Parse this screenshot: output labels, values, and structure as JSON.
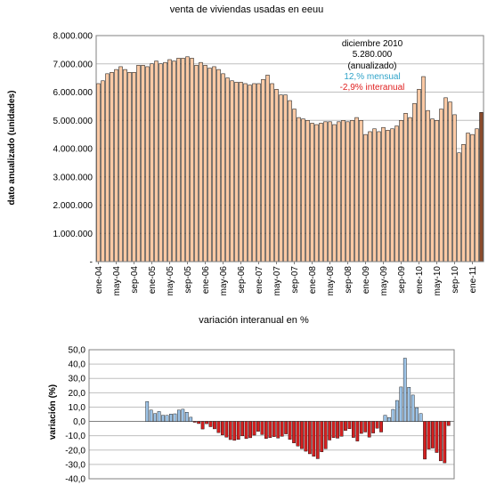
{
  "chart_data": [
    {
      "type": "bar",
      "title": "venta de viviendas usadas en eeuu",
      "ylabel": "dato anualizado (unidades)",
      "xlabel": "",
      "ylim": [
        0,
        8000000
      ],
      "y_tick_labels": [
        "-",
        "1.000.000",
        "2.000.000",
        "3.000.000",
        "4.000.000",
        "5.000.000",
        "6.000.000",
        "7.000.000",
        "8.000.000"
      ],
      "x_tick_labels": [
        "ene-04",
        "may-04",
        "sep-04",
        "ene-05",
        "may-05",
        "sep-05",
        "ene-06",
        "may-06",
        "sep-06",
        "ene-07",
        "may-07",
        "sep-07",
        "ene-08",
        "may-08",
        "sep-08",
        "ene-09",
        "may-09",
        "sep-09",
        "ene-10",
        "may-10",
        "sep-10",
        "ene-11"
      ],
      "grid": true,
      "colors": {
        "bar": "#fbc9a4",
        "last_bar": "#8b4a2b",
        "border": "#000000"
      },
      "annotation": {
        "line1": "diciembre 2010",
        "line2": "5.280.000",
        "line3": "(anualizado)",
        "line4": "12,% mensual",
        "line5": "-2,9% interanual",
        "line4_color": "#2fa3c9",
        "line5_color": "#e02020"
      },
      "values": [
        6300000,
        6400000,
        6650000,
        6700000,
        6800000,
        6900000,
        6800000,
        6700000,
        6700000,
        6950000,
        6950000,
        6900000,
        7000000,
        7100000,
        7000000,
        7050000,
        7150000,
        7100000,
        7200000,
        7200000,
        7250000,
        7200000,
        6950000,
        7050000,
        6950000,
        6850000,
        6900000,
        6800000,
        6650000,
        6500000,
        6400000,
        6350000,
        6350000,
        6300000,
        6250000,
        6300000,
        6300000,
        6450000,
        6600000,
        6300000,
        6100000,
        5900000,
        5900000,
        5700000,
        5400000,
        5100000,
        5050000,
        5000000,
        4900000,
        4850000,
        4900000,
        4950000,
        4950000,
        4850000,
        4950000,
        5000000,
        4950000,
        5000000,
        5100000,
        5000000,
        4500000,
        4600000,
        4700000,
        4600000,
        4750000,
        4650000,
        4700000,
        4800000,
        5000000,
        5250000,
        5100000,
        5600000,
        6100000,
        6550000,
        5350000,
        5050000,
        5000000,
        5400000,
        5800000,
        5650000,
        5200000,
        3850000,
        4150000,
        4550000,
        4500000,
        4700000,
        5280000
      ]
    },
    {
      "type": "bar",
      "title": "variación interanual en %",
      "ylabel": "variación (%)",
      "xlabel": "",
      "ylim": [
        -40,
        50
      ],
      "y_tick_labels": [
        "-40,0",
        "-30,0",
        "-20,0",
        "-10,0",
        "0,0",
        "10,0",
        "20,0",
        "30,0",
        "40,0",
        "50,0"
      ],
      "grid": true,
      "colors": {
        "positive": "#9dc3e6",
        "negative": "#d42020",
        "border": "#000000"
      },
      "values": [
        13.9,
        7.9,
        5.5,
        6.9,
        4.3,
        4.2,
        5.1,
        5.3,
        7.9,
        8.5,
        6.4,
        2.9,
        -0.6,
        -1.5,
        -5.3,
        -1.6,
        -3.7,
        -5.2,
        -7.8,
        -9.4,
        -11.0,
        -12.7,
        -13.2,
        -12.6,
        -10.1,
        -12.0,
        -11.4,
        -9.6,
        -6.9,
        -9.2,
        -11.9,
        -11.3,
        -10.6,
        -11.6,
        -10.4,
        -8.7,
        -12.6,
        -15.0,
        -17.2,
        -19.0,
        -20.8,
        -22.6,
        -24.3,
        -26.0,
        -21.2,
        -19.1,
        -13.0,
        -11.3,
        -11.7,
        -10.4,
        -6.3,
        -5.1,
        -11.2,
        -13.7,
        -8.4,
        -7.4,
        -11.0,
        -8.1,
        -4.8,
        -7.4,
        4.3,
        2.7,
        8.4,
        14.6,
        24.0,
        44.1,
        23.8,
        18.4,
        9.6,
        5.5,
        -26.3,
        -19.3,
        -18.6,
        -21.7,
        -27.5,
        -28.9,
        -2.9
      ]
    }
  ]
}
